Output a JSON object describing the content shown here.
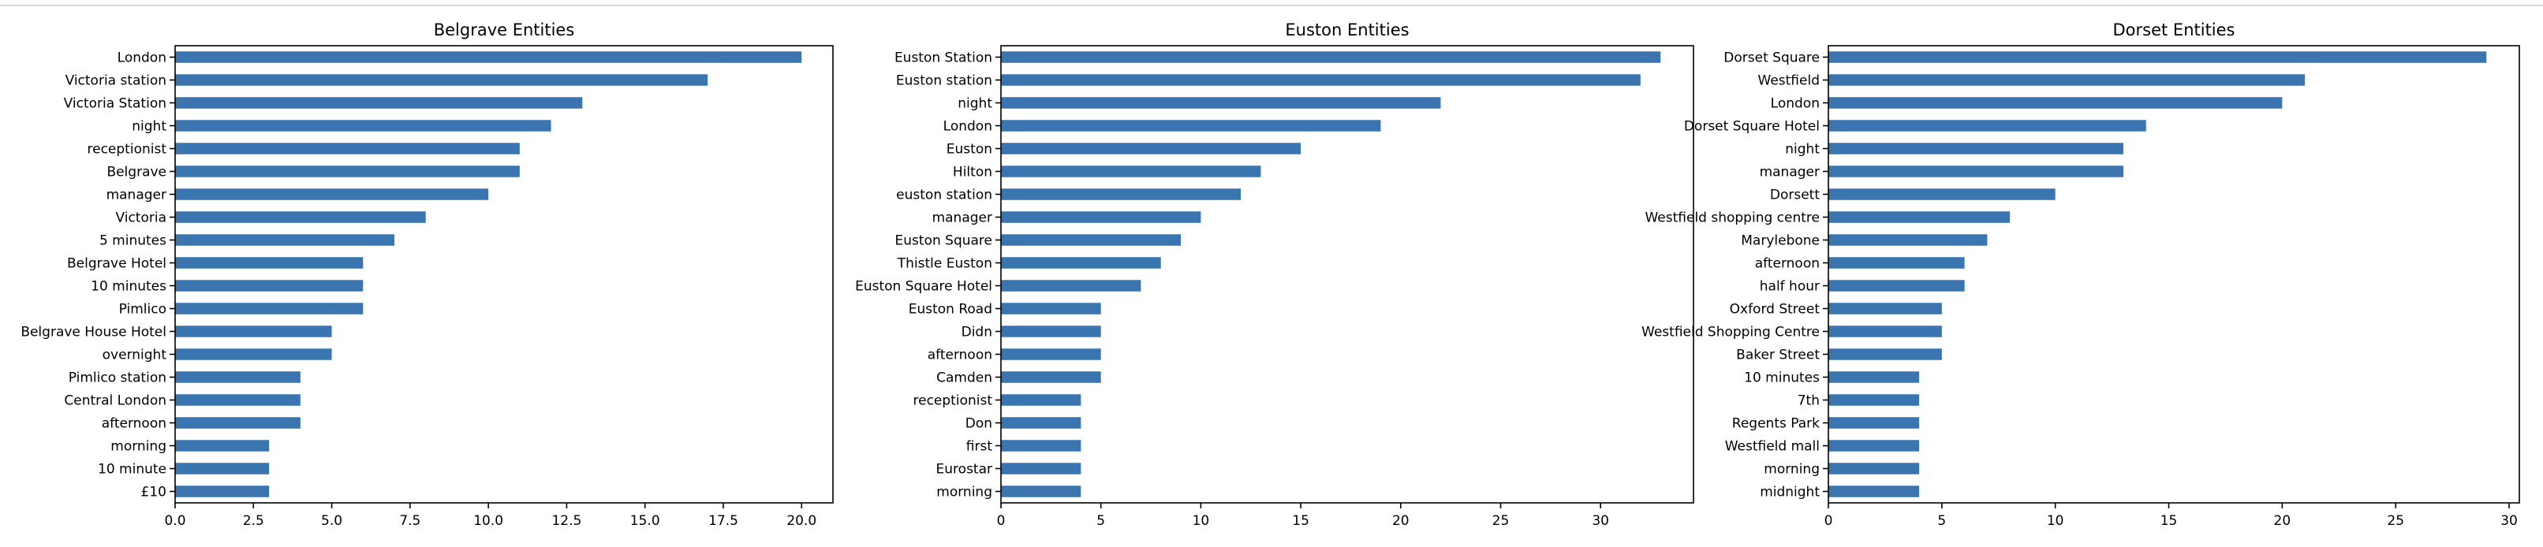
{
  "chart_data": [
    {
      "type": "bar",
      "orientation": "horizontal",
      "title": "Belgrave Entities",
      "xlabel": "",
      "ylabel": "",
      "xlim": [
        0,
        21
      ],
      "xticks": [
        "0.0",
        "2.5",
        "5.0",
        "7.5",
        "10.0",
        "12.5",
        "15.0",
        "17.5",
        "20.0"
      ],
      "color": "#3a75b0",
      "grid": false,
      "categories": [
        "London",
        "Victoria station",
        "Victoria Station",
        "night",
        "receptionist",
        "Belgrave",
        "manager",
        "Victoria",
        "5 minutes",
        "Belgrave Hotel",
        "10 minutes",
        "Pimlico",
        "Belgrave House Hotel",
        "overnight",
        "Pimlico station",
        "Central London",
        "afternoon",
        "morning",
        "10 minute",
        "£10"
      ],
      "values": [
        20,
        17,
        13,
        12,
        11,
        11,
        10,
        8,
        7,
        6,
        6,
        6,
        5,
        5,
        4,
        4,
        4,
        3,
        3,
        3
      ]
    },
    {
      "type": "bar",
      "orientation": "horizontal",
      "title": "Euston Entities",
      "xlabel": "",
      "ylabel": "",
      "xlim": [
        0,
        34.65
      ],
      "xticks": [
        "0",
        "5",
        "10",
        "15",
        "20",
        "25",
        "30"
      ],
      "color": "#3a75b0",
      "grid": false,
      "categories": [
        "Euston Station",
        "Euston station",
        "night",
        "London",
        "Euston",
        "Hilton",
        "euston station",
        "manager",
        "Euston Square",
        "Thistle Euston",
        "Euston Square Hotel",
        "Euston Road",
        "Didn",
        "afternoon",
        "Camden",
        "receptionist",
        "Don",
        "first",
        "Eurostar",
        "morning"
      ],
      "values": [
        33,
        32,
        22,
        19,
        15,
        13,
        12,
        10,
        9,
        8,
        7,
        5,
        5,
        5,
        5,
        4,
        4,
        4,
        4,
        4
      ]
    },
    {
      "type": "bar",
      "orientation": "horizontal",
      "title": "Dorset Entities",
      "xlabel": "",
      "ylabel": "",
      "xlim": [
        0,
        30.45
      ],
      "xticks": [
        "0",
        "5",
        "10",
        "15",
        "20",
        "25",
        "30"
      ],
      "color": "#3a75b0",
      "grid": false,
      "categories": [
        "Dorset Square",
        "Westfield",
        "London",
        "Dorset Square Hotel",
        "night",
        "manager",
        "Dorsett",
        "Westfield shopping centre",
        "Marylebone",
        "afternoon",
        "half hour",
        "Oxford Street",
        "Westfield Shopping Centre",
        "Baker Street",
        "10 minutes",
        "7th",
        "Regents Park",
        "Westfield mall",
        "morning",
        "midnight"
      ],
      "values": [
        29,
        21,
        20,
        14,
        13,
        13,
        10,
        8,
        7,
        6,
        6,
        5,
        5,
        5,
        4,
        4,
        4,
        4,
        4,
        4
      ]
    }
  ]
}
